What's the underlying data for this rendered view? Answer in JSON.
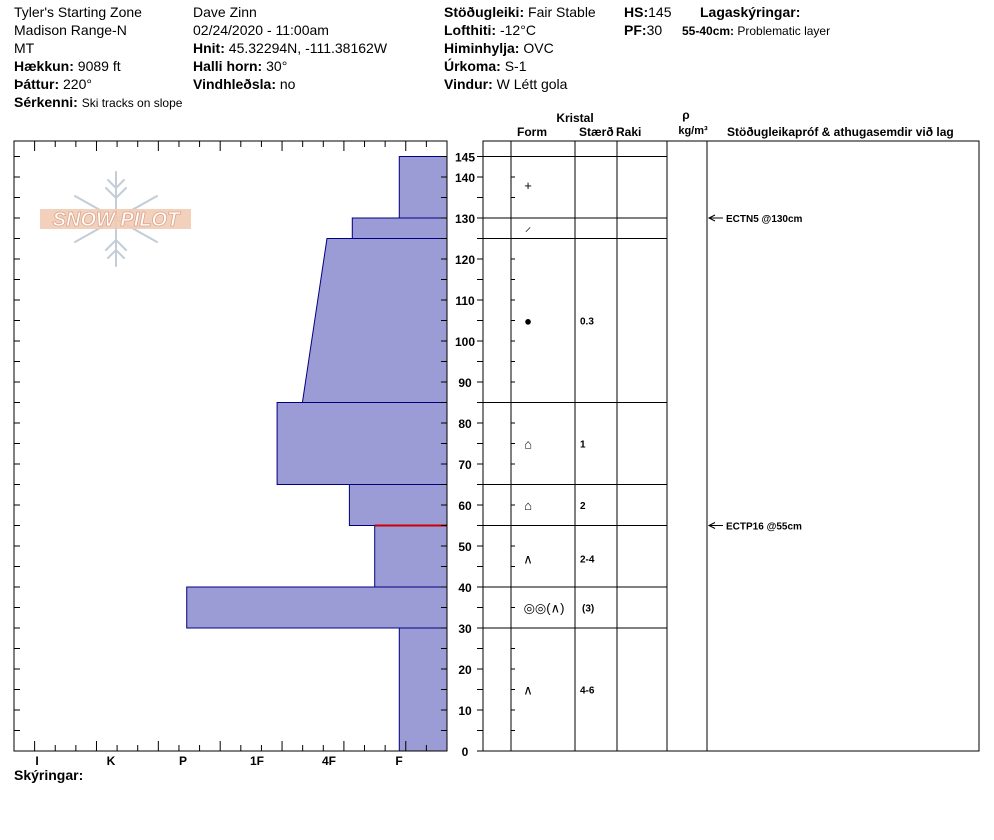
{
  "header": {
    "location": "Tyler's Starting Zone",
    "range": "Madison Range-N",
    "state": "MT",
    "elevation_label": "Hækkun:",
    "elevation_value": "9089 ft",
    "aspect_label": "Þáttur:",
    "aspect_value": "220°",
    "features_label": "Sérkenni:",
    "features_value": "Ski tracks on slope",
    "observer": "Dave Zinn",
    "datetime": "02/24/2020 - 11:00am",
    "coords_label": "Hnit:",
    "coords_value": "45.32294N, -111.38162W",
    "slope_label": "Halli horn:",
    "slope_value": "30°",
    "wind_loading_label": "Vindhleðsla:",
    "wind_loading_value": "no",
    "stability_label": "Stöðugleiki:",
    "stability_value": "Fair Stable",
    "airtemp_label": "Lofthiti:",
    "airtemp_value": "-12°C",
    "sky_label": "Himinhylja:",
    "sky_value": "OVC",
    "precip_label": "Úrkoma:",
    "precip_value": "S-1",
    "wind_label": "Vindur:",
    "wind_value": "W Létt gola",
    "hs_label": "HS:",
    "hs_value": "145",
    "pf_label": "PF:",
    "pf_value": "30",
    "layer_notes_label": "Lagaskýringar:",
    "layer_note_range": "55-40cm:",
    "layer_note_text": "Problematic layer"
  },
  "logo_text": "SNOW PILOT",
  "columns": {
    "crystal": "Kristal",
    "form": "Form",
    "size": "Stærð",
    "moisture": "Raki",
    "rho": "ρ",
    "density_unit": "kg/m³",
    "comments": "Stöðugleikapróf & athugasemdir við lag"
  },
  "legend_label": "Skýringar:",
  "colors": {
    "hardness_fill": "#9b9bd6",
    "hardness_stroke": "#000080",
    "problem_line": "#cc0000"
  },
  "chart_data": {
    "type": "snow-profile",
    "depth_axis": {
      "min": 0,
      "max": 145,
      "ticks": [
        0,
        10,
        20,
        30,
        40,
        50,
        60,
        70,
        80,
        90,
        100,
        110,
        120,
        130,
        140,
        145
      ]
    },
    "hardness_axis": {
      "labels": [
        "I",
        "K",
        "P",
        "1F",
        "4F",
        "F"
      ]
    },
    "hardness_profile": [
      {
        "top": 145,
        "bottom": 130,
        "hardness": 0.66
      },
      {
        "top": 130,
        "bottom": 125,
        "hardness": 1.31
      },
      {
        "top": 125,
        "bottom": 85,
        "hardness_top": 1.66,
        "hardness_bottom": 2.0
      },
      {
        "top": 85,
        "bottom": 65,
        "hardness": 2.35
      },
      {
        "top": 65,
        "bottom": 55,
        "hardness": 1.35
      },
      {
        "top": 55,
        "bottom": 40,
        "hardness": 1.0
      },
      {
        "top": 40,
        "bottom": 30,
        "hardness": 3.6
      },
      {
        "top": 30,
        "bottom": 0,
        "hardness": 0.66
      }
    ],
    "problem_layer_depth": 55,
    "layer_boundaries": [
      145,
      130,
      125,
      85,
      65,
      55,
      40,
      30,
      0
    ],
    "grains": [
      {
        "depth": 138,
        "form": "+",
        "size": ""
      },
      {
        "depth": 128,
        "form": "⸝",
        "size": ""
      },
      {
        "depth": 105,
        "form": "●",
        "size": "0.3"
      },
      {
        "depth": 75,
        "form": "⌂",
        "size": "1"
      },
      {
        "depth": 60,
        "form": "⌂",
        "size": "2"
      },
      {
        "depth": 47,
        "form": "∧",
        "size": "2-4"
      },
      {
        "depth": 35,
        "form": "◎◎(∧)",
        "size": "(3)"
      },
      {
        "depth": 15,
        "form": "∧",
        "size": "4-6"
      }
    ],
    "tests": [
      {
        "depth": 130,
        "text": "ECTN5 @130cm"
      },
      {
        "depth": 55,
        "text": "ECTP16 @55cm"
      }
    ]
  }
}
